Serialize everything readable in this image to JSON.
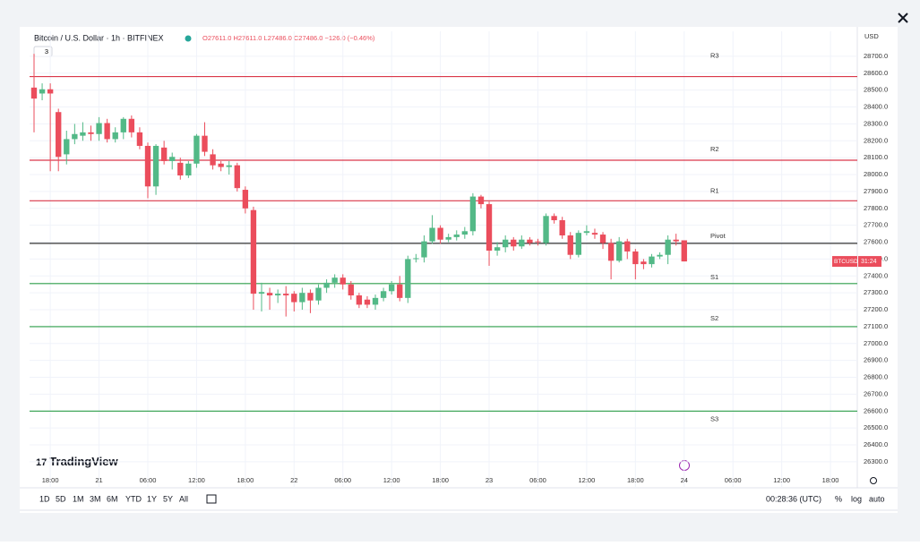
{
  "header": {
    "symbol": "Bitcoin / U.S. Dollar · 1h · BITFINEX",
    "ohlc": "O27611.0 H27611.0 L27486.0 C27486.0 −126.0 (−0.46%)",
    "badge": "3",
    "currency": "USD"
  },
  "price_tag": {
    "symbol": "BTCUSD",
    "countdown": "31:24"
  },
  "brand": "TradingView",
  "toolbar": {
    "ranges": [
      "1D",
      "5D",
      "1M",
      "3M",
      "6M",
      "YTD",
      "1Y",
      "5Y",
      "All"
    ],
    "clock": "00:28:36 (UTC)",
    "options": [
      "%",
      "log",
      "auto"
    ]
  },
  "chart_data": {
    "type": "candlestick",
    "x": [
      0,
      1,
      2,
      3,
      4,
      5,
      6,
      7,
      8,
      9,
      10,
      11,
      12,
      13,
      14,
      15,
      16,
      17,
      18,
      19,
      20,
      21,
      22,
      23,
      24,
      25,
      26,
      27,
      28,
      29,
      30,
      31,
      32,
      33,
      34,
      35,
      36,
      37,
      38,
      39,
      40,
      41,
      42,
      43,
      44,
      45,
      46,
      47,
      48,
      49,
      50,
      51,
      52,
      53,
      54,
      55,
      56,
      57,
      58,
      59,
      60,
      61,
      62,
      63,
      64,
      65,
      66,
      67,
      68,
      69,
      70,
      71,
      72,
      73,
      74,
      75,
      76,
      77,
      78,
      79,
      80
    ],
    "open": [
      28515,
      28480,
      28505,
      28370,
      28120,
      28210,
      28230,
      28250,
      28240,
      28305,
      28210,
      28250,
      28330,
      28250,
      28170,
      27930,
      28160,
      28080,
      28070,
      27995,
      28065,
      28230,
      28120,
      28065,
      28045,
      28055,
      27910,
      27790,
      27295,
      27300,
      27285,
      27295,
      27295,
      27245,
      27300,
      27255,
      27330,
      27360,
      27390,
      27350,
      27285,
      27260,
      27230,
      27270,
      27310,
      27350,
      27270,
      27500,
      27510,
      27605,
      27685,
      27615,
      27630,
      27645,
      27665,
      27870,
      27825,
      27550,
      27570,
      27615,
      27575,
      27615,
      27605,
      27595,
      27755,
      27730,
      27640,
      27525,
      27655,
      27655,
      27645,
      27595,
      27490,
      27605,
      27545,
      27485,
      27470,
      27515,
      27525,
      27615,
      27611
    ],
    "high": [
      28715,
      28540,
      28540,
      28390,
      28260,
      28300,
      28310,
      28290,
      28340,
      28330,
      28280,
      28340,
      28350,
      28280,
      28190,
      28180,
      28200,
      28130,
      28100,
      28080,
      28240,
      28310,
      28150,
      28080,
      28080,
      28070,
      27930,
      27810,
      27360,
      27330,
      27320,
      27340,
      27310,
      27330,
      27320,
      27350,
      27380,
      27410,
      27410,
      27370,
      27300,
      27280,
      27290,
      27330,
      27370,
      27400,
      27520,
      27530,
      27640,
      27760,
      27700,
      27650,
      27670,
      27690,
      27890,
      27880,
      27840,
      27600,
      27640,
      27630,
      27640,
      27630,
      27620,
      27770,
      27770,
      27750,
      27660,
      27670,
      27700,
      27680,
      27660,
      27620,
      27630,
      27620,
      27560,
      27500,
      27530,
      27540,
      27640,
      27650,
      27611
    ],
    "low": [
      28250,
      28440,
      28020,
      28020,
      28060,
      28180,
      28200,
      28200,
      28200,
      28190,
      28190,
      28210,
      28220,
      28150,
      27860,
      27880,
      28060,
      28030,
      27970,
      27980,
      28040,
      28110,
      28030,
      28020,
      28000,
      27900,
      27770,
      27200,
      27190,
      27200,
      27240,
      27160,
      27190,
      27200,
      27180,
      27230,
      27300,
      27330,
      27320,
      27260,
      27210,
      27210,
      27200,
      27250,
      27290,
      27250,
      27240,
      27480,
      27480,
      27590,
      27590,
      27600,
      27610,
      27620,
      27640,
      27800,
      27460,
      27520,
      27540,
      27550,
      27560,
      27580,
      27580,
      27580,
      27710,
      27620,
      27500,
      27510,
      27640,
      27620,
      27560,
      27380,
      27480,
      27500,
      27380,
      27440,
      27450,
      27500,
      27470,
      27580,
      27486
    ],
    "close": [
      28450,
      28505,
      28480,
      28105,
      28210,
      28240,
      28250,
      28240,
      28305,
      28210,
      28250,
      28330,
      28250,
      28170,
      27930,
      28170,
      28080,
      28105,
      27995,
      28065,
      28230,
      28135,
      28055,
      28045,
      28055,
      27920,
      27800,
      27295,
      27305,
      27285,
      27295,
      27285,
      27245,
      27300,
      27255,
      27330,
      27360,
      27390,
      27350,
      27285,
      27230,
      27230,
      27270,
      27310,
      27350,
      27270,
      27500,
      27505,
      27605,
      27685,
      27615,
      27630,
      27645,
      27665,
      27870,
      27825,
      27550,
      27570,
      27615,
      27575,
      27615,
      27595,
      27600,
      27755,
      27730,
      27640,
      27525,
      27655,
      27665,
      27645,
      27595,
      27490,
      27605,
      27545,
      27470,
      27470,
      27515,
      27525,
      27615,
      27605,
      27486
    ],
    "up_color": "#53b987",
    "down_color": "#eb4d5c",
    "xlim": [
      -0.55,
      101.3
    ],
    "xticks": [
      {
        "value": 2,
        "label": "18:00"
      },
      {
        "value": 8,
        "label": "21"
      },
      {
        "value": 14,
        "label": "06:00"
      },
      {
        "value": 20,
        "label": "12:00"
      },
      {
        "value": 26,
        "label": "18:00"
      },
      {
        "value": 32,
        "label": "22"
      },
      {
        "value": 38,
        "label": "06:00"
      },
      {
        "value": 44,
        "label": "12:00"
      },
      {
        "value": 50,
        "label": "18:00"
      },
      {
        "value": 56,
        "label": "23"
      },
      {
        "value": 62,
        "label": "06:00"
      },
      {
        "value": 68,
        "label": "12:00"
      },
      {
        "value": 74,
        "label": "18:00"
      },
      {
        "value": 80,
        "label": "24"
      },
      {
        "value": 86,
        "label": "06:00"
      },
      {
        "value": 92,
        "label": "12:00"
      },
      {
        "value": 98,
        "label": "18:00"
      }
    ],
    "ylim": [
      26146,
      28848
    ],
    "yticks": [
      {
        "value": 26300,
        "label": "26300.0"
      },
      {
        "value": 26400,
        "label": "26400.0"
      },
      {
        "value": 26500,
        "label": "26500.0"
      },
      {
        "value": 26600,
        "label": "26600.0"
      },
      {
        "value": 26700,
        "label": "26700.0"
      },
      {
        "value": 26800,
        "label": "26800.0"
      },
      {
        "value": 26900,
        "label": "26900.0"
      },
      {
        "value": 27000,
        "label": "27000.0"
      },
      {
        "value": 27100,
        "label": "27100.0"
      },
      {
        "value": 27200,
        "label": "27200.0"
      },
      {
        "value": 27300,
        "label": "27300.0"
      },
      {
        "value": 27400,
        "label": "27400.0"
      },
      {
        "value": 27500,
        "label": "27500.0"
      },
      {
        "value": 27600,
        "label": "27600.0"
      },
      {
        "value": 27700,
        "label": "27700.0"
      },
      {
        "value": 27800,
        "label": "27800.0"
      },
      {
        "value": 27900,
        "label": "27900.0"
      },
      {
        "value": 28000,
        "label": "28000.0"
      },
      {
        "value": 28100,
        "label": "28100.0"
      },
      {
        "value": 28200,
        "label": "28200.0"
      },
      {
        "value": 28300,
        "label": "28300.0"
      },
      {
        "value": 28400,
        "label": "28400.0"
      },
      {
        "value": 28500,
        "label": "28500.0"
      },
      {
        "value": 28600,
        "label": "28600.0"
      },
      {
        "value": 28700,
        "label": "28700.0"
      }
    ],
    "grid": true,
    "levels": [
      {
        "name": "R3",
        "value": 28580,
        "color": "#d9374a"
      },
      {
        "name": "R2",
        "value": 28085,
        "color": "#d9374a"
      },
      {
        "name": "R1",
        "value": 27845,
        "color": "#d9374a"
      },
      {
        "name": "Pivot",
        "value": 27593,
        "color": "#333333"
      },
      {
        "name": "S1",
        "value": 27355,
        "color": "#2e9e4a"
      },
      {
        "name": "S2",
        "value": 27100,
        "color": "#2e9e4a"
      },
      {
        "name": "S3",
        "value": 26600,
        "color": "#2e9e4a"
      }
    ]
  }
}
